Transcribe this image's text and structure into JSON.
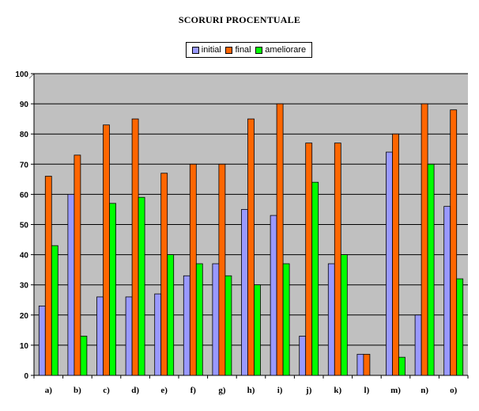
{
  "chart_data": {
    "type": "bar",
    "title": "SCORURI PROCENTUALE",
    "xlabel": "",
    "ylabel": "",
    "ylim": [
      0,
      100
    ],
    "yticks": [
      0,
      10,
      20,
      30,
      40,
      50,
      60,
      70,
      80,
      90,
      100
    ],
    "grid": true,
    "legend": "top-center",
    "categories": [
      "a)",
      "b)",
      "c)",
      "d)",
      "e)",
      "f)",
      "g)",
      "h)",
      "i)",
      "j)",
      "k)",
      "l)",
      "m)",
      "n)",
      "o)"
    ],
    "series": [
      {
        "name": "initial",
        "color": "#9999ff",
        "values": [
          23,
          60,
          26,
          26,
          27,
          33,
          37,
          55,
          53,
          13,
          37,
          7,
          74,
          20,
          56
        ]
      },
      {
        "name": "final",
        "color": "#ff6600",
        "values": [
          66,
          73,
          83,
          85,
          67,
          70,
          70,
          85,
          90,
          77,
          77,
          7,
          80,
          90,
          88
        ]
      },
      {
        "name": "ameliorare",
        "color": "#00ff00",
        "values": [
          43,
          13,
          57,
          59,
          40,
          37,
          33,
          30,
          37,
          64,
          40,
          0,
          6,
          70,
          32
        ]
      }
    ],
    "plot_background": "#c0c0c0"
  }
}
